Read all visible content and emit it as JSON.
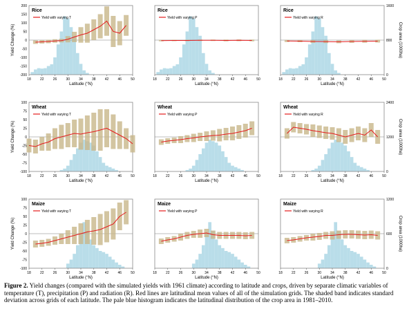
{
  "caption": {
    "label": "Figure 2.",
    "text": "Yield changes (compared with the simulated yields with 1961 climate) according to latitude and crops, driven by separate climatic variables of temperature (T), precipitation (P) and radiation (R). Red lines are latitudinal mean values of all of the simulation grids. The shaded band indicates standard deviation across grids of each latitude. The pale blue histogram indicates the latitudinal distribution of the crop area in 1981–2010."
  },
  "colors": {
    "mean_line": "#e41a1c",
    "sd_band": "#c8b68a",
    "crop_area": "#b9dde9",
    "zero_line": "#7f7f7f"
  },
  "chart_data": [
    {
      "type": "line",
      "crop": "Rice",
      "title": "Rice",
      "legend": "Yield with varying T",
      "xlabel": "Latitude (°N)",
      "ylabel": "Yield Change (%)",
      "xlim": [
        18,
        50
      ],
      "ylim": [
        -200,
        200
      ],
      "xticks": [
        18,
        22,
        26,
        30,
        34,
        38,
        42,
        46,
        50
      ],
      "yticks": [
        -200,
        -150,
        -100,
        -50,
        0,
        50,
        100,
        150,
        200
      ],
      "series": [
        {
          "name": "Yield with varying T",
          "x": [
            20,
            22,
            24,
            26,
            28,
            30,
            32,
            34,
            36,
            38,
            40,
            42,
            44,
            46,
            48
          ],
          "y": [
            -12,
            -10,
            -8,
            -5,
            -3,
            5,
            18,
            30,
            40,
            60,
            80,
            110,
            50,
            40,
            85
          ],
          "sd": [
            10,
            10,
            10,
            10,
            10,
            18,
            30,
            45,
            55,
            60,
            70,
            85,
            90,
            70,
            60
          ]
        }
      ],
      "area": {
        "x": [
          19,
          20,
          21,
          22,
          23,
          24,
          25,
          26,
          27,
          28,
          29,
          30,
          31,
          32,
          33,
          34,
          35,
          36
        ],
        "v": [
          60,
          120,
          150,
          140,
          150,
          200,
          240,
          400,
          700,
          1000,
          1350,
          1300,
          1100,
          900,
          500,
          250,
          100,
          40
        ]
      }
    },
    {
      "type": "line",
      "crop": "Rice",
      "title": "Rice",
      "legend": "Yield with varying P",
      "xlabel": "Latitude (°N)",
      "ylabel": "",
      "xlim": [
        18,
        50
      ],
      "ylim": [
        -200,
        200
      ],
      "xticks": [
        18,
        22,
        26,
        30,
        34,
        38,
        42,
        46,
        50
      ],
      "yticks": [],
      "series": [
        {
          "name": "Yield with varying P",
          "x": [
            20,
            24,
            28,
            32,
            36,
            40,
            44,
            48
          ],
          "y": [
            -3,
            -2,
            -2,
            -1,
            -1,
            -2,
            -1,
            -2
          ],
          "sd": [
            4,
            4,
            4,
            4,
            4,
            5,
            5,
            5
          ]
        }
      ],
      "area": {
        "x": [
          19,
          20,
          21,
          22,
          23,
          24,
          25,
          26,
          27,
          28,
          29,
          30,
          31,
          32,
          33,
          34,
          35,
          36
        ],
        "v": [
          60,
          120,
          150,
          140,
          150,
          200,
          240,
          400,
          700,
          1000,
          1350,
          1300,
          1100,
          900,
          500,
          250,
          100,
          40
        ]
      }
    },
    {
      "type": "line",
      "crop": "Rice",
      "title": "Rice",
      "legend": "Yield with varying R",
      "xlabel": "Latitude (°N)",
      "ylabel": "",
      "y2label": "Crop area (1000ha)",
      "xlim": [
        18,
        50
      ],
      "ylim": [
        -200,
        200
      ],
      "xticks": [
        18,
        22,
        26,
        30,
        34,
        38,
        42,
        46,
        50
      ],
      "yticks": [],
      "y2ticks": [
        0,
        800,
        1600
      ],
      "series": [
        {
          "name": "Yield with varying R",
          "x": [
            20,
            24,
            28,
            32,
            36,
            40,
            44,
            48
          ],
          "y": [
            -5,
            -6,
            -8,
            -9,
            -10,
            -8,
            -7,
            -6
          ],
          "sd": [
            6,
            6,
            8,
            8,
            8,
            8,
            8,
            8
          ]
        }
      ],
      "area": {
        "x": [
          19,
          20,
          21,
          22,
          23,
          24,
          25,
          26,
          27,
          28,
          29,
          30,
          31,
          32,
          33,
          34,
          35,
          36
        ],
        "v": [
          60,
          120,
          150,
          140,
          150,
          200,
          240,
          400,
          700,
          1000,
          1350,
          1300,
          1100,
          900,
          500,
          250,
          100,
          40
        ]
      }
    },
    {
      "type": "line",
      "crop": "Wheat",
      "title": "Wheat",
      "legend": "Yield with varying T",
      "xlabel": "Latitude (°N)",
      "ylabel": "Yield Change (%)",
      "xlim": [
        18,
        50
      ],
      "ylim": [
        -100,
        100
      ],
      "xticks": [
        18,
        22,
        26,
        30,
        34,
        38,
        42,
        46,
        50
      ],
      "yticks": [
        -100,
        -75,
        -50,
        -25,
        0,
        25,
        50,
        75,
        100
      ],
      "series": [
        {
          "name": "Yield with varying T",
          "x": [
            18,
            20,
            22,
            24,
            26,
            28,
            30,
            32,
            34,
            36,
            38,
            40,
            42,
            44,
            46,
            48,
            50
          ],
          "y": [
            -25,
            -28,
            -20,
            -15,
            -5,
            0,
            5,
            10,
            8,
            12,
            15,
            20,
            25,
            15,
            5,
            -5,
            -20
          ],
          "sd": [
            20,
            20,
            20,
            25,
            30,
            35,
            35,
            40,
            45,
            50,
            55,
            60,
            55,
            50,
            40,
            30,
            25
          ]
        }
      ],
      "area": {
        "x": [
          28,
          29,
          30,
          31,
          32,
          33,
          34,
          35,
          36,
          37,
          38,
          39,
          40,
          41,
          42,
          43,
          44,
          45
        ],
        "v": [
          50,
          100,
          200,
          400,
          600,
          800,
          1000,
          1100,
          1050,
          1000,
          900,
          700,
          500,
          300,
          200,
          150,
          100,
          50
        ]
      }
    },
    {
      "type": "line",
      "crop": "Wheat",
      "title": "Wheat",
      "legend": "Yield with varying P",
      "xlabel": "Latitude (°N)",
      "ylabel": "",
      "xlim": [
        18,
        50
      ],
      "ylim": [
        -100,
        100
      ],
      "xticks": [
        18,
        22,
        26,
        30,
        34,
        38,
        42,
        46,
        50
      ],
      "yticks": [],
      "series": [
        {
          "name": "Yield with varying P",
          "x": [
            20,
            22,
            24,
            26,
            28,
            30,
            32,
            34,
            36,
            38,
            40,
            42,
            44,
            46,
            48
          ],
          "y": [
            -15,
            -12,
            -10,
            -8,
            -5,
            -3,
            0,
            2,
            4,
            5,
            8,
            10,
            14,
            18,
            25
          ],
          "sd": [
            8,
            8,
            8,
            10,
            10,
            12,
            12,
            14,
            15,
            18,
            18,
            20,
            20,
            20,
            20
          ]
        }
      ],
      "area": {
        "x": [
          28,
          29,
          30,
          31,
          32,
          33,
          34,
          35,
          36,
          37,
          38,
          39,
          40,
          41,
          42,
          43,
          44,
          45
        ],
        "v": [
          50,
          100,
          200,
          400,
          600,
          800,
          1000,
          1100,
          1050,
          1000,
          900,
          700,
          500,
          300,
          200,
          150,
          100,
          50
        ]
      }
    },
    {
      "type": "line",
      "crop": "Wheat",
      "title": "Wheat",
      "legend": "Yield with varying R",
      "xlabel": "Latitude (°N)",
      "ylabel": "",
      "y2label": "Crop area (1000ha)",
      "xlim": [
        18,
        50
      ],
      "ylim": [
        -100,
        100
      ],
      "xticks": [
        18,
        22,
        26,
        30,
        34,
        38,
        42,
        46,
        50
      ],
      "yticks": [],
      "y2ticks": [
        0,
        1200,
        2400
      ],
      "series": [
        {
          "name": "Yield with varying R",
          "x": [
            20,
            22,
            24,
            26,
            28,
            30,
            32,
            34,
            36,
            38,
            40,
            42,
            44,
            46,
            48
          ],
          "y": [
            10,
            28,
            25,
            22,
            18,
            15,
            12,
            10,
            5,
            0,
            5,
            10,
            5,
            20,
            0
          ],
          "sd": [
            15,
            15,
            15,
            15,
            18,
            18,
            18,
            18,
            20,
            20,
            20,
            20,
            20,
            20,
            20
          ]
        }
      ],
      "area": {
        "x": [
          28,
          29,
          30,
          31,
          32,
          33,
          34,
          35,
          36,
          37,
          38,
          39,
          40,
          41,
          42,
          43,
          44,
          45
        ],
        "v": [
          50,
          100,
          200,
          400,
          600,
          800,
          1000,
          1100,
          1050,
          1000,
          900,
          700,
          500,
          300,
          200,
          150,
          100,
          50
        ]
      }
    },
    {
      "type": "line",
      "crop": "Maize",
      "title": "Maize",
      "legend": "Yield with varying T",
      "xlabel": "Latitude (°N)",
      "ylabel": "Yield Change (%)",
      "xlim": [
        18,
        50
      ],
      "ylim": [
        -100,
        100
      ],
      "xticks": [
        18,
        22,
        26,
        30,
        34,
        38,
        42,
        46,
        50
      ],
      "yticks": [
        -100,
        -75,
        -50,
        -25,
        0,
        25,
        50,
        75,
        100
      ],
      "series": [
        {
          "name": "Yield with varying T",
          "x": [
            20,
            22,
            24,
            26,
            28,
            30,
            32,
            34,
            36,
            38,
            40,
            42,
            44,
            46,
            48
          ],
          "y": [
            -30,
            -28,
            -25,
            -20,
            -15,
            -10,
            -5,
            0,
            5,
            8,
            12,
            20,
            28,
            50,
            62
          ],
          "sd": [
            10,
            10,
            10,
            12,
            15,
            20,
            25,
            30,
            35,
            40,
            45,
            45,
            45,
            40,
            35
          ]
        }
      ],
      "area": {
        "x": [
          30,
          31,
          32,
          33,
          34,
          35,
          36,
          37,
          38,
          39,
          40,
          41,
          42,
          43,
          44,
          45,
          46,
          47
        ],
        "v": [
          80,
          150,
          250,
          400,
          600,
          800,
          650,
          500,
          400,
          350,
          300,
          280,
          250,
          200,
          150,
          100,
          60,
          30
        ]
      }
    },
    {
      "type": "line",
      "crop": "Maize",
      "title": "Maize",
      "legend": "Yield with varying P",
      "xlabel": "Latitude (°N)",
      "ylabel": "",
      "xlim": [
        18,
        50
      ],
      "ylim": [
        -100,
        100
      ],
      "xticks": [
        18,
        22,
        26,
        30,
        34,
        38,
        42,
        46,
        50
      ],
      "yticks": [],
      "series": [
        {
          "name": "Yield with varying P",
          "x": [
            20,
            22,
            24,
            26,
            28,
            30,
            32,
            34,
            36,
            38,
            40,
            42,
            44,
            46,
            48
          ],
          "y": [
            -22,
            -18,
            -15,
            -10,
            -5,
            -2,
            0,
            2,
            -3,
            -5,
            -5,
            -5,
            -5,
            -6,
            -5
          ],
          "sd": [
            8,
            8,
            8,
            10,
            10,
            10,
            12,
            12,
            12,
            10,
            10,
            10,
            10,
            10,
            10
          ]
        }
      ],
      "area": {
        "x": [
          30,
          31,
          32,
          33,
          34,
          35,
          36,
          37,
          38,
          39,
          40,
          41,
          42,
          43,
          44,
          45,
          46,
          47
        ],
        "v": [
          80,
          150,
          250,
          400,
          600,
          800,
          650,
          500,
          400,
          350,
          300,
          280,
          250,
          200,
          150,
          100,
          60,
          30
        ]
      }
    },
    {
      "type": "line",
      "crop": "Maize",
      "title": "Maize",
      "legend": "Yield with varying R",
      "xlabel": "Latitude (°N)",
      "ylabel": "",
      "y2label": "Crop area (1000ha)",
      "xlim": [
        18,
        50
      ],
      "ylim": [
        -100,
        100
      ],
      "xticks": [
        18,
        22,
        26,
        30,
        34,
        38,
        42,
        46,
        50
      ],
      "yticks": [],
      "y2ticks": [
        0,
        600,
        1200
      ],
      "series": [
        {
          "name": "Yield with varying R",
          "x": [
            20,
            22,
            24,
            26,
            28,
            30,
            32,
            34,
            36,
            38,
            40,
            42,
            44,
            46,
            48
          ],
          "y": [
            -20,
            -18,
            -15,
            -12,
            -10,
            -8,
            -5,
            -5,
            -3,
            -2,
            -2,
            -3,
            -4,
            -3,
            -5
          ],
          "sd": [
            8,
            8,
            8,
            8,
            10,
            10,
            10,
            12,
            12,
            12,
            12,
            12,
            12,
            12,
            12
          ]
        }
      ],
      "area": {
        "x": [
          30,
          31,
          32,
          33,
          34,
          35,
          36,
          37,
          38,
          39,
          40,
          41,
          42,
          43,
          44,
          45,
          46,
          47
        ],
        "v": [
          80,
          150,
          250,
          400,
          600,
          800,
          650,
          500,
          400,
          350,
          300,
          280,
          250,
          200,
          150,
          100,
          60,
          30
        ]
      }
    }
  ]
}
